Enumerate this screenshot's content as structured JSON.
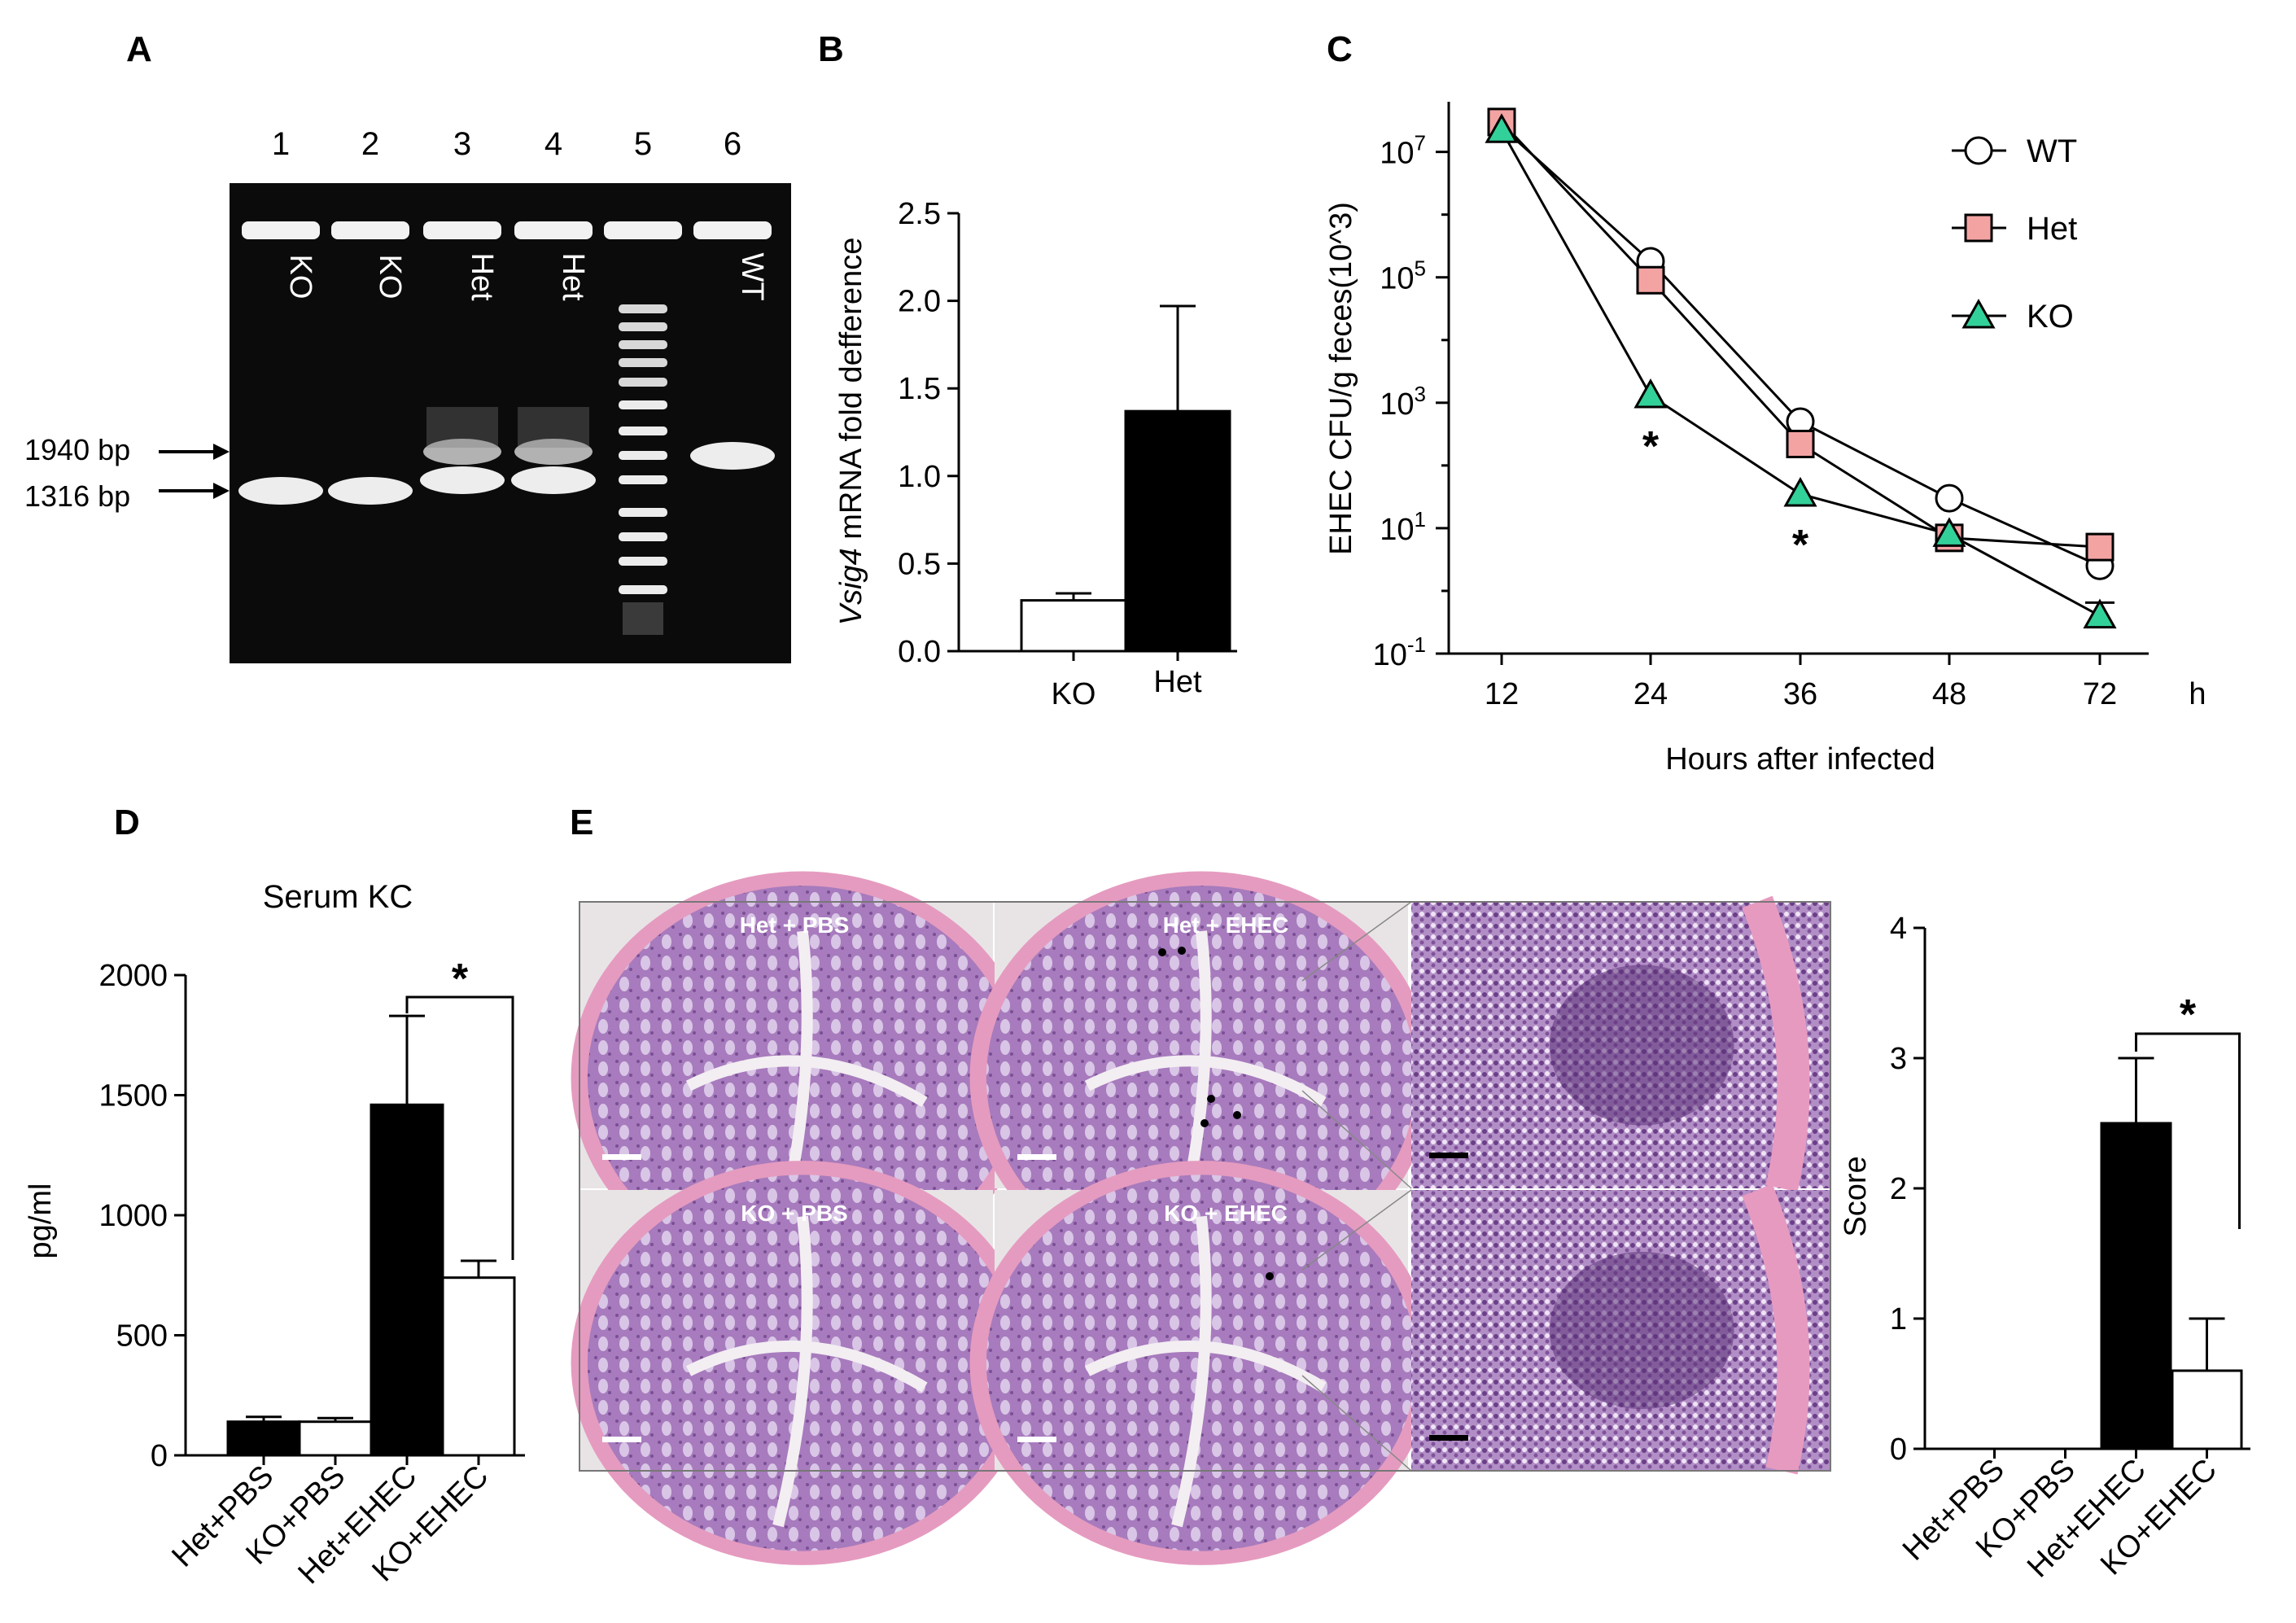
{
  "panels": {
    "A": {
      "letter": "A",
      "lanes": [
        {
          "num": "1",
          "label": "KO"
        },
        {
          "num": "2",
          "label": "KO"
        },
        {
          "num": "3",
          "label": "Het"
        },
        {
          "num": "4",
          "label": "Het"
        },
        {
          "num": "5",
          "label": ""
        },
        {
          "num": "6",
          "label": "WT"
        }
      ],
      "markers": [
        "1940 bp",
        "1316 bp"
      ]
    },
    "B": {
      "letter": "B"
    },
    "C": {
      "letter": "C"
    },
    "D": {
      "letter": "D"
    },
    "E": {
      "letter": "E",
      "micrograph_labels": [
        "Het + PBS",
        "Het + EHEC",
        "KO + PBS",
        "KO + EHEC"
      ]
    }
  },
  "chart_data": [
    {
      "id": "B",
      "type": "bar",
      "ylabel_italic": "Vsig4",
      "ylabel_rest": " mRNA fold defference",
      "categories": [
        "KO",
        "Het"
      ],
      "values": [
        0.29,
        1.37
      ],
      "errors": [
        0.04,
        0.6
      ],
      "fills": [
        "#ffffff",
        "#000000"
      ],
      "ylim": [
        0,
        2.5
      ],
      "yticks": [
        "0.0",
        "0.5",
        "1.0",
        "1.5",
        "2.0",
        "2.5"
      ]
    },
    {
      "id": "C",
      "type": "line",
      "ylabel": "EHEC CFU/g feces(10^3)",
      "xlabel": "Hours after infected",
      "x_unit": "h",
      "scale": "log",
      "x": [
        12,
        24,
        36,
        48,
        72
      ],
      "ytick_exponents": [
        "7",
        "5",
        "3",
        "1",
        "-1"
      ],
      "series": [
        {
          "name": "WT",
          "marker": "circle",
          "color": "#ffffff",
          "values": [
            25000000,
            180000,
            500,
            30,
            2.5
          ]
        },
        {
          "name": "Het",
          "marker": "square",
          "color": "#f4a3a3",
          "values": [
            30000000,
            90000,
            220,
            7,
            5
          ]
        },
        {
          "name": "KO",
          "marker": "triangle",
          "color": "#33d19a",
          "values": [
            22000000,
            1300,
            35,
            8,
            0.4
          ]
        }
      ],
      "significance": [
        {
          "x": 24,
          "label": "*"
        },
        {
          "x": 36,
          "label": "*"
        }
      ]
    },
    {
      "id": "D",
      "type": "bar",
      "title": "Serum KC",
      "ylabel": "pg/ml",
      "categories": [
        "Het+PBS",
        "KO+PBS",
        "Het+EHEC",
        "KO+EHEC"
      ],
      "values": [
        140,
        140,
        1460,
        740
      ],
      "errors": [
        20,
        15,
        370,
        70
      ],
      "fills": [
        "#000000",
        "#ffffff",
        "#000000",
        "#ffffff"
      ],
      "ylim": [
        0,
        2000
      ],
      "yticks": [
        "0",
        "500",
        "1000",
        "1500",
        "2000"
      ],
      "significance": "*"
    },
    {
      "id": "E",
      "type": "bar",
      "ylabel": "Score",
      "categories": [
        "Het+PBS",
        "KO+PBS",
        "Het+EHEC",
        "KO+EHEC"
      ],
      "values": [
        0,
        0,
        2.5,
        0.6
      ],
      "errors": [
        0,
        0,
        0.5,
        0.4
      ],
      "fills": [
        "#000000",
        "#ffffff",
        "#000000",
        "#ffffff"
      ],
      "ylim": [
        0,
        4
      ],
      "yticks": [
        "0",
        "1",
        "2",
        "3",
        "4"
      ],
      "significance": "*"
    }
  ]
}
